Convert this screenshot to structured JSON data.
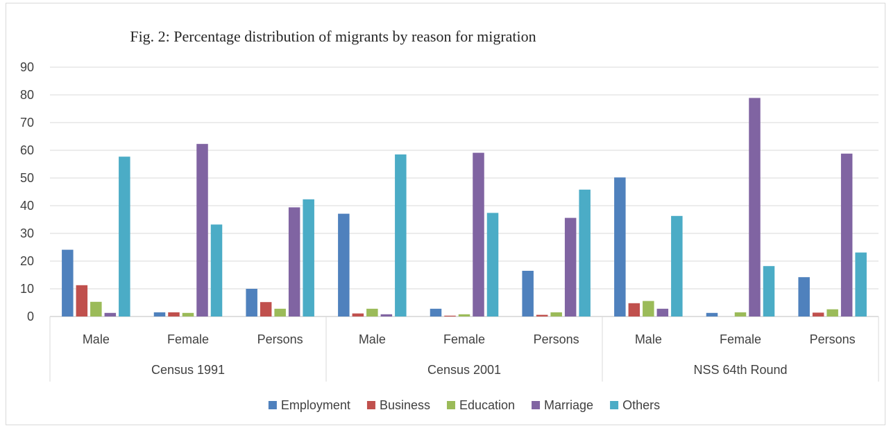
{
  "chart_data": {
    "type": "bar",
    "title": "Fig. 2: Percentage distribution of migrants by reason for migration",
    "xlabel": "",
    "ylabel": "",
    "ylim": [
      0,
      90
    ],
    "yticks": [
      0,
      10,
      20,
      30,
      40,
      50,
      60,
      70,
      80,
      90
    ],
    "grid": true,
    "legend_position": "bottom",
    "groups": [
      {
        "label": "Census 1991",
        "categories": [
          "Male",
          "Female",
          "Persons"
        ]
      },
      {
        "label": "Census 2001",
        "categories": [
          "Male",
          "Female",
          "Persons"
        ]
      },
      {
        "label": "NSS 64th Round",
        "categories": [
          "Male",
          "Female",
          "Persons"
        ]
      }
    ],
    "categories": [
      "Male",
      "Female",
      "Persons",
      "Male",
      "Female",
      "Persons",
      "Male",
      "Female",
      "Persons"
    ],
    "series": [
      {
        "name": "Employment",
        "color": "#4f81bd",
        "values": [
          24.1,
          1.5,
          10.0,
          37.1,
          2.8,
          16.5,
          50.2,
          1.3,
          14.2
        ]
      },
      {
        "name": "Business",
        "color": "#c0504d",
        "values": [
          11.3,
          1.5,
          5.2,
          1.1,
          0.3,
          0.6,
          4.8,
          0.0,
          1.4
        ]
      },
      {
        "name": "Education",
        "color": "#9bbb59",
        "values": [
          5.3,
          1.3,
          2.8,
          2.8,
          0.8,
          1.5,
          5.6,
          1.5,
          2.6
        ]
      },
      {
        "name": "Marriage",
        "color": "#8064a2",
        "values": [
          1.3,
          62.3,
          39.4,
          0.8,
          59.1,
          35.6,
          2.8,
          78.9,
          58.8
        ]
      },
      {
        "name": "Others",
        "color": "#4bacc6",
        "values": [
          57.7,
          33.2,
          42.3,
          58.5,
          37.4,
          45.8,
          36.3,
          18.2,
          23.1
        ]
      }
    ]
  }
}
